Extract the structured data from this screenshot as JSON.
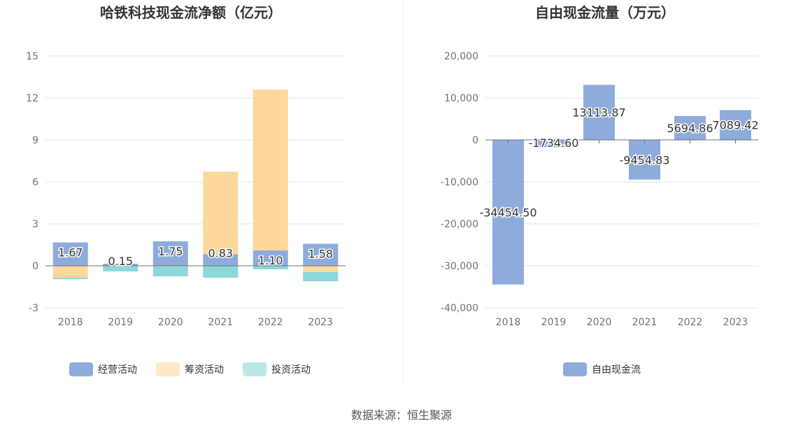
{
  "source_text": "数据来源：恒生聚源",
  "colors": {
    "operating": "#8eacdb",
    "financing": "#fed89b",
    "investing": "#8cd8da",
    "fcf": "#8eacdb",
    "axis_text": "#6e7079",
    "grid": "#e0e6f1",
    "zero_line": "#6e7079",
    "title": "#333333"
  },
  "chart_data": [
    {
      "type": "bar",
      "stacked": true,
      "title": "哈铁科技现金流净额（亿元）",
      "categories": [
        "2018",
        "2019",
        "2020",
        "2021",
        "2022",
        "2023"
      ],
      "ylim": [
        -3,
        15
      ],
      "yticks": [
        -3,
        0,
        3,
        6,
        9,
        12,
        15
      ],
      "ytick_labels": [
        "-3",
        "0",
        "3",
        "6",
        "9",
        "12",
        "15"
      ],
      "grid": true,
      "legend_position": "bottom",
      "series": [
        {
          "name": "经营活动",
          "color_key": "operating",
          "values": [
            1.67,
            0.15,
            1.75,
            0.83,
            1.1,
            1.58
          ],
          "labels": [
            "1.67",
            "0.15",
            "1.75",
            "0.83",
            "1.10",
            "1.58"
          ]
        },
        {
          "name": "筹资活动",
          "color_key": "financing",
          "values": [
            -0.85,
            0.0,
            -0.05,
            5.9,
            11.5,
            -0.45
          ]
        },
        {
          "name": "投资活动",
          "color_key": "investing",
          "values": [
            -0.1,
            -0.4,
            -0.7,
            -0.85,
            -0.25,
            -0.65
          ]
        }
      ]
    },
    {
      "type": "bar",
      "title": "自由现金流量（万元）",
      "categories": [
        "2018",
        "2019",
        "2020",
        "2021",
        "2022",
        "2023"
      ],
      "ylim": [
        -40000,
        20000
      ],
      "yticks": [
        -40000,
        -30000,
        -20000,
        -10000,
        0,
        10000,
        20000
      ],
      "ytick_labels": [
        "-40,000",
        "-30,000",
        "-20,000",
        "-10,000",
        "0",
        "10,000",
        "20,000"
      ],
      "grid": true,
      "legend_position": "bottom",
      "series": [
        {
          "name": "自由现金流",
          "color_key": "fcf",
          "values": [
            -34454.5,
            -1734.6,
            13113.87,
            -9454.83,
            5694.86,
            7089.42
          ],
          "labels": [
            "-34454.50",
            "-1734.60",
            "13113.87",
            "-9454.83",
            "5694.86",
            "7089.42"
          ]
        }
      ]
    }
  ]
}
